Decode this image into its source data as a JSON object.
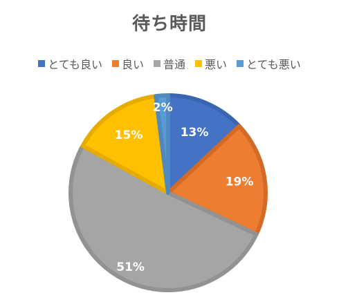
{
  "chart_data": {
    "type": "pie",
    "title": "待ち時間",
    "legend_position": "top",
    "categories": [
      "とても良い",
      "良い",
      "普通",
      "悪い",
      "とても悪い"
    ],
    "values": [
      13,
      19,
      51,
      15,
      2
    ],
    "value_labels": [
      "13%",
      "19%",
      "51%",
      "15%",
      "2%"
    ],
    "colors": [
      "#4472C4",
      "#ED7D31",
      "#A5A5A5",
      "#FFC000",
      "#5B9BD5"
    ],
    "border_colors": [
      "#3A65B0",
      "#D36A26",
      "#929292",
      "#E6AC00",
      "#4F89BE"
    ]
  }
}
